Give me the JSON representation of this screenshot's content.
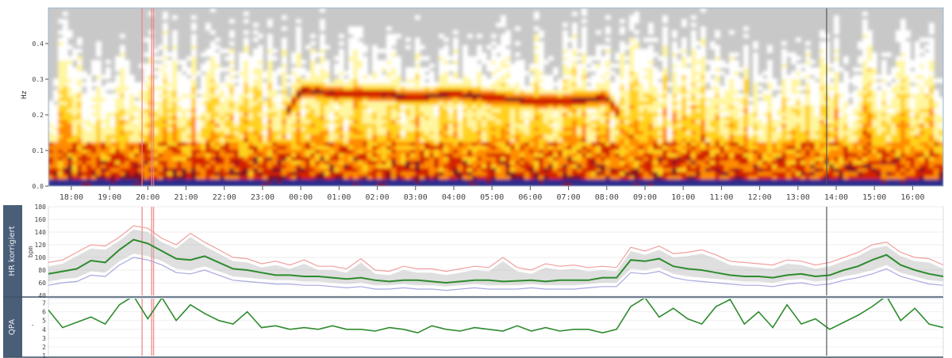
{
  "colors": {
    "panel_border": "#3d5066",
    "side_panel": "#4a5e78",
    "hr_mean": "#2e8b2e",
    "hr_upper": "#f0a0a0",
    "hr_lower": "#a8a8e0",
    "hr_band": "#b8b8b8",
    "qpa_line": "#2e8b2e",
    "event_marker": "#f08080",
    "cursor": "#555555",
    "spectrogram_bg": "#c8c8c8"
  },
  "chart_data": [
    {
      "type": "heatmap",
      "name": "spectrogram",
      "ylabel": "Hz",
      "ylim": [
        0,
        0.5
      ],
      "y_ticks": [
        "0.0",
        "0.1",
        "0.2",
        "0.3",
        "0.4"
      ],
      "x_ticks": [
        "18:00",
        "19:00",
        "20:00",
        "21:00",
        "22:00",
        "23:00",
        "00:00",
        "01:00",
        "02:00",
        "03:00",
        "04:00",
        "05:00",
        "06:00",
        "07:00",
        "08:00",
        "09:00",
        "10:00",
        "11:00",
        "12:00",
        "13:00",
        "14:00",
        "15:00",
        "16:00"
      ],
      "x_range_hours": [
        17.4,
        40.8
      ],
      "colormap": [
        "#c8c8c8",
        "#ffffff",
        "#fff6a0",
        "#ffd21e",
        "#ff8c00",
        "#d42000",
        "#7a1020",
        "#2a2a8c"
      ],
      "dominant_peak_hz": [
        {
          "t": 17.5,
          "hz": 0.1
        },
        {
          "t": 18.0,
          "hz": 0.08
        },
        {
          "t": 19.0,
          "hz": 0.1
        },
        {
          "t": 20.0,
          "hz": 0.08
        },
        {
          "t": 21.0,
          "hz": 0.1
        },
        {
          "t": 22.0,
          "hz": 0.09
        },
        {
          "t": 23.0,
          "hz": 0.1
        },
        {
          "t": 0.0,
          "hz": 0.27
        },
        {
          "t": 1.0,
          "hz": 0.26
        },
        {
          "t": 2.0,
          "hz": 0.26
        },
        {
          "t": 3.0,
          "hz": 0.25
        },
        {
          "t": 4.0,
          "hz": 0.26
        },
        {
          "t": 5.0,
          "hz": 0.25
        },
        {
          "t": 6.0,
          "hz": 0.24
        },
        {
          "t": 7.0,
          "hz": 0.24
        },
        {
          "t": 8.0,
          "hz": 0.25
        },
        {
          "t": 9.0,
          "hz": 0.1
        },
        {
          "t": 10.0,
          "hz": 0.11
        },
        {
          "t": 11.0,
          "hz": 0.12
        },
        {
          "t": 12.0,
          "hz": 0.11
        },
        {
          "t": 13.0,
          "hz": 0.12
        },
        {
          "t": 14.0,
          "hz": 0.12
        },
        {
          "t": 15.0,
          "hz": 0.11
        },
        {
          "t": 16.0,
          "hz": 0.12
        }
      ]
    },
    {
      "type": "line",
      "name": "hr-korrigiert",
      "title": "HR korrigiert",
      "ylabel": "bpm",
      "ylim": [
        40,
        180
      ],
      "y_ticks": [
        "40",
        "60",
        "80",
        "100",
        "120",
        "140",
        "160",
        "180"
      ],
      "x_range_hours": [
        17.4,
        40.8
      ],
      "series": [
        {
          "name": "",
          "role": "mean",
          "values": [
            74,
            78,
            82,
            95,
            92,
            112,
            128,
            122,
            110,
            98,
            96,
            102,
            92,
            82,
            80,
            76,
            72,
            72,
            70,
            70,
            68,
            66,
            68,
            64,
            62,
            64,
            64,
            62,
            60,
            62,
            64,
            64,
            62,
            63,
            64,
            62,
            64,
            64,
            64,
            68,
            68,
            96,
            94,
            98,
            86,
            82,
            80,
            76,
            72,
            70,
            70,
            68,
            72,
            74,
            70,
            72,
            80,
            86,
            96,
            104,
            88,
            80,
            74,
            70
          ]
        },
        {
          "name": "",
          "role": "upper",
          "values": [
            92,
            96,
            108,
            120,
            118,
            132,
            150,
            146,
            130,
            120,
            138,
            124,
            112,
            100,
            98,
            90,
            94,
            88,
            96,
            86,
            86,
            82,
            98,
            80,
            78,
            86,
            82,
            82,
            78,
            82,
            86,
            84,
            100,
            84,
            80,
            90,
            86,
            88,
            84,
            86,
            84,
            116,
            110,
            118,
            106,
            108,
            112,
            104,
            94,
            92,
            90,
            88,
            96,
            94,
            88,
            92,
            100,
            108,
            120,
            124,
            108,
            100,
            98,
            88
          ]
        },
        {
          "name": "",
          "role": "lower",
          "values": [
            56,
            60,
            62,
            72,
            70,
            88,
            100,
            96,
            88,
            76,
            74,
            80,
            72,
            64,
            62,
            60,
            58,
            58,
            56,
            56,
            54,
            52,
            54,
            50,
            50,
            52,
            50,
            50,
            48,
            50,
            52,
            50,
            50,
            50,
            52,
            50,
            50,
            50,
            52,
            54,
            54,
            76,
            74,
            78,
            68,
            64,
            62,
            60,
            58,
            56,
            56,
            54,
            58,
            60,
            56,
            58,
            64,
            68,
            74,
            82,
            70,
            64,
            58,
            56
          ]
        }
      ]
    },
    {
      "type": "line",
      "name": "qpa",
      "title": "QPA",
      "ylabel": "-",
      "ylim": [
        1,
        7.5
      ],
      "y_ticks": [
        "1",
        "2",
        "3",
        "4",
        "5",
        "6",
        "7"
      ],
      "x_range_hours": [
        17.4,
        40.8
      ],
      "series": [
        {
          "name": "",
          "values": [
            6.2,
            4.2,
            4.8,
            5.4,
            4.6,
            6.8,
            7.8,
            5.2,
            7.6,
            5.0,
            6.8,
            5.8,
            5.0,
            4.6,
            6.0,
            4.2,
            4.4,
            4.0,
            4.2,
            4.0,
            4.4,
            4.0,
            4.0,
            3.8,
            4.2,
            4.0,
            3.6,
            4.4,
            4.0,
            3.8,
            4.2,
            4.0,
            3.8,
            4.4,
            3.8,
            4.2,
            3.8,
            4.0,
            4.0,
            3.6,
            4.0,
            6.6,
            7.6,
            5.4,
            6.4,
            5.2,
            4.6,
            6.6,
            7.4,
            4.6,
            6.0,
            4.2,
            6.8,
            4.6,
            5.2,
            4.0,
            4.8,
            5.6,
            6.6,
            7.8,
            5.0,
            6.4,
            4.6,
            4.2
          ]
        }
      ]
    }
  ],
  "markers": {
    "event_times": [
      19.85,
      20.1,
      20.15
    ],
    "cursor_time": 37.75
  },
  "panels": {
    "spectrogram_axis_label": "Hz",
    "hr_title": "HR korrigiert",
    "hr_unit": "bpm",
    "qpa_title": "QPA",
    "qpa_unit": "-"
  }
}
